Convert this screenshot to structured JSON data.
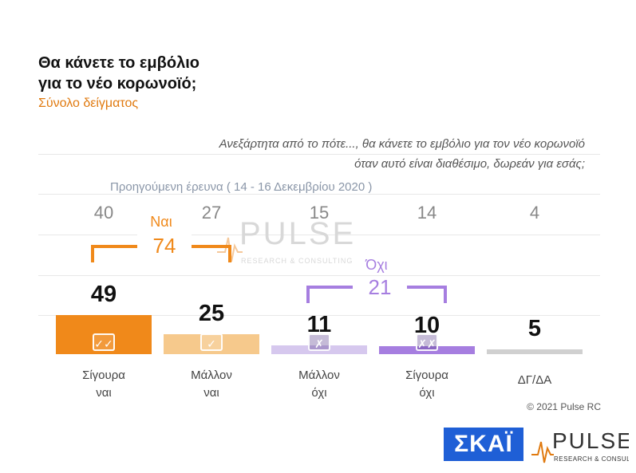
{
  "title_line1": "Θα κάνετε το εμβόλιο",
  "title_line2": "για το νέο κορωνοϊό;",
  "subtitle": "Σύνολο δείγματος",
  "question_line1": "Ανεξάρτητα από το πότε..., θα κάνετε το εμβόλιο για τον νέο κορωνοϊό",
  "question_line2": "όταν αυτό είναι διαθέσιμο, δωρεάν για εσάς;",
  "previous_survey_label": "Προηγούμενη έρευνα  ( 14 - 16  Δεκεμβρίου  2020 )",
  "group_yes": {
    "label": "Ναι",
    "total": "74",
    "color": "#f0891a"
  },
  "group_no": {
    "label": "Όχι",
    "total": "21",
    "color": "#a67ee0"
  },
  "watermark": {
    "name": "PULSE",
    "tagline": "RESEARCH & CONSULTING"
  },
  "copyright": "© 2021 Pulse RC",
  "logos": {
    "skai": "ΣΚΑΪ",
    "pulse": "PULSE",
    "pulse_tagline": "RESEARCH & CONSULTING"
  },
  "icons": [
    "check-double-icon",
    "check-icon",
    "cross-icon",
    "cross-double-icon",
    "none"
  ],
  "chart_data": {
    "type": "bar",
    "categories": [
      "Σίγουρα ναι",
      "Μάλλον ναι",
      "Μάλλον όχι",
      "Σίγουρα όχι",
      "ΔΓ/ΔΑ"
    ],
    "category_lines": [
      [
        "Σίγουρα",
        "ναι"
      ],
      [
        "Μάλλον",
        "ναι"
      ],
      [
        "Μάλλον",
        "όχι"
      ],
      [
        "Σίγουρα",
        "όχι"
      ],
      [
        "ΔΓ/ΔΑ",
        ""
      ]
    ],
    "values": [
      49,
      25,
      11,
      10,
      5
    ],
    "previous_values": [
      40,
      27,
      15,
      14,
      4
    ],
    "colors": [
      "#f0891a",
      "#f6c98c",
      "#d6c8ee",
      "#a67ee0",
      "#d0d0d0"
    ]
  }
}
